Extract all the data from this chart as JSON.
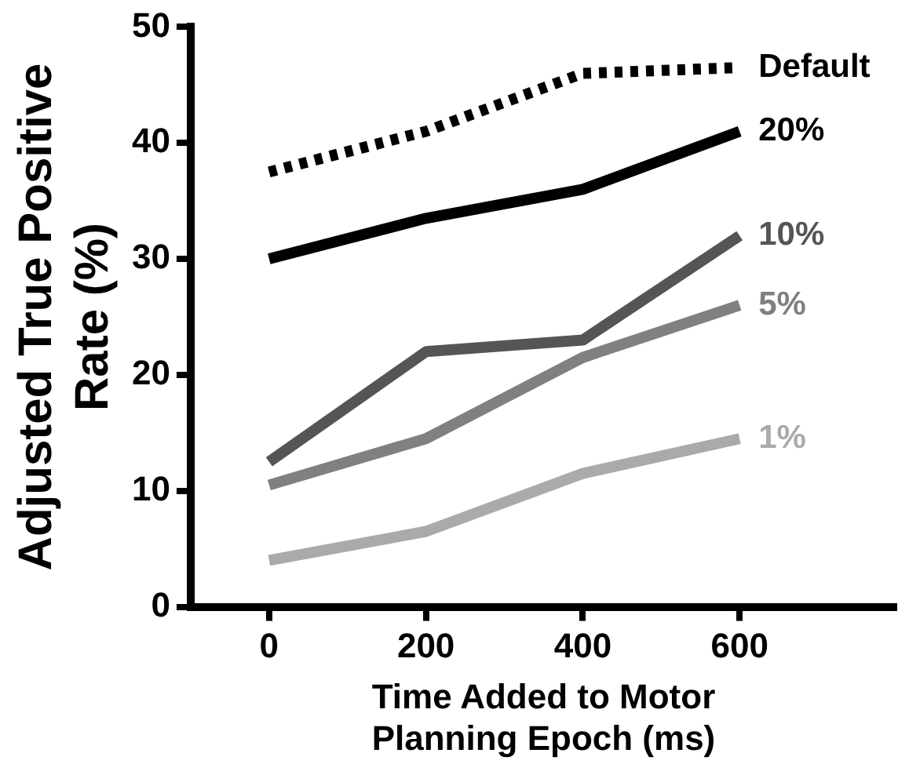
{
  "chart_data": {
    "type": "line",
    "xlabel": "Time Added to Motor Planning Epoch (ms)",
    "ylabel": "Adjusted True Positive Rate (%)",
    "x": [
      0,
      200,
      400,
      600
    ],
    "xlim": [
      -100,
      800
    ],
    "xticks": [
      0,
      200,
      400,
      600
    ],
    "ylim": [
      0,
      50
    ],
    "yticks": [
      0,
      10,
      20,
      30,
      40,
      50
    ],
    "grid": false,
    "legend": false,
    "marker": "none",
    "series": [
      {
        "name": "Default",
        "color": "#000000",
        "line_style": "dotted",
        "values": [
          37.5,
          41,
          46,
          46.5
        ]
      },
      {
        "name": "20%",
        "color": "#000000",
        "values": [
          30,
          33.5,
          36,
          41
        ]
      },
      {
        "name": "10%",
        "color": "#555555",
        "values": [
          12.5,
          22,
          23,
          32
        ]
      },
      {
        "name": "5%",
        "color": "#808080",
        "values": [
          10.5,
          14.5,
          21.5,
          26
        ]
      },
      {
        "name": "1%",
        "color": "#aaaaaa",
        "values": [
          4,
          6.5,
          11.5,
          14.5
        ]
      }
    ]
  }
}
